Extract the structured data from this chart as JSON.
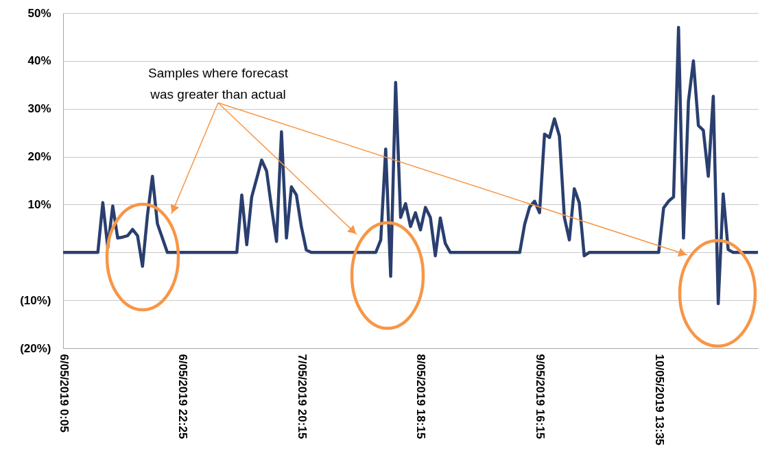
{
  "chart_data": {
    "type": "line",
    "categories": [
      "6/05/2019 0:05",
      null,
      null,
      null,
      null,
      null,
      null,
      null,
      null,
      null,
      null,
      null,
      null,
      null,
      null,
      null,
      null,
      null,
      null,
      null,
      null,
      null,
      null,
      null,
      "6/05/2019 22:25",
      null,
      null,
      null,
      null,
      null,
      null,
      null,
      null,
      null,
      null,
      null,
      null,
      null,
      null,
      null,
      null,
      null,
      null,
      null,
      null,
      null,
      null,
      null,
      "7/05/2019 20:15",
      null,
      null,
      null,
      null,
      null,
      null,
      null,
      null,
      null,
      null,
      null,
      null,
      null,
      null,
      null,
      null,
      null,
      null,
      null,
      null,
      null,
      null,
      null,
      "8/05/2019 18:15",
      null,
      null,
      null,
      null,
      null,
      null,
      null,
      null,
      null,
      null,
      null,
      null,
      null,
      null,
      null,
      null,
      null,
      null,
      null,
      null,
      null,
      null,
      null,
      "9/05/2019 16:15",
      null,
      null,
      null,
      null,
      null,
      null,
      null,
      null,
      null,
      null,
      null,
      null,
      null,
      null,
      null,
      null,
      null,
      null,
      null,
      null,
      null,
      null,
      null,
      "10/05/2019 13:35",
      null,
      null,
      null,
      null,
      null,
      null,
      null,
      null,
      null,
      null,
      null,
      null,
      null,
      null,
      null,
      null,
      null,
      null,
      null,
      null
    ],
    "series": [
      {
        "color": "#2a3f6f",
        "values": [
          0,
          0,
          0,
          0,
          0,
          0,
          0,
          0,
          10.4,
          1,
          9.7,
          3,
          3.2,
          3.5,
          4.8,
          3.5,
          -2.9,
          7.8,
          15.9,
          6,
          3,
          0,
          0,
          0,
          0,
          0,
          0,
          0,
          0,
          0,
          0,
          0,
          0,
          0,
          0,
          0,
          12,
          1.6,
          11.6,
          15.4,
          19.3,
          17,
          9.3,
          2.3,
          25.2,
          3,
          13.7,
          12,
          5.4,
          0.5,
          0,
          0,
          0,
          0,
          0,
          0,
          0,
          0,
          0,
          0,
          0,
          0,
          0,
          0,
          2.6,
          21.6,
          -5,
          35.5,
          7.3,
          10.2,
          5.4,
          8.3,
          4.7,
          9.4,
          7.3,
          -0.7,
          7.2,
          1.9,
          0,
          0,
          0,
          0,
          0,
          0,
          0,
          0,
          0,
          0,
          0,
          0,
          0,
          0,
          0,
          5.9,
          9.5,
          10.7,
          8.3,
          24.7,
          24,
          27.9,
          24.3,
          7.3,
          2.6,
          13.3,
          10.4,
          -0.7,
          0,
          0,
          0,
          0,
          0,
          0,
          0,
          0,
          0,
          0,
          0,
          0,
          0,
          0,
          0,
          9.3,
          10.7,
          11.6,
          47,
          3,
          31.6,
          40,
          26.5,
          25.5,
          15.9,
          32.6,
          -10.7,
          12.2,
          0.6,
          0,
          0,
          0,
          0,
          0,
          0
        ]
      }
    ],
    "ylim": [
      -20,
      50
    ],
    "yticks": [
      {
        "value": -20,
        "label": "(20%)"
      },
      {
        "value": -10,
        "label": "(10%)"
      },
      {
        "value": 0,
        "label": null
      },
      {
        "value": 10,
        "label": "10%"
      },
      {
        "value": 20,
        "label": "20%"
      },
      {
        "value": 30,
        "label": "30%"
      },
      {
        "value": 40,
        "label": "40%"
      },
      {
        "value": 50,
        "label": "50%"
      }
    ],
    "grid": "y",
    "line_style": "solid",
    "marker": "none",
    "annotations": [
      "Samples where forecast was greater than actual"
    ]
  }
}
